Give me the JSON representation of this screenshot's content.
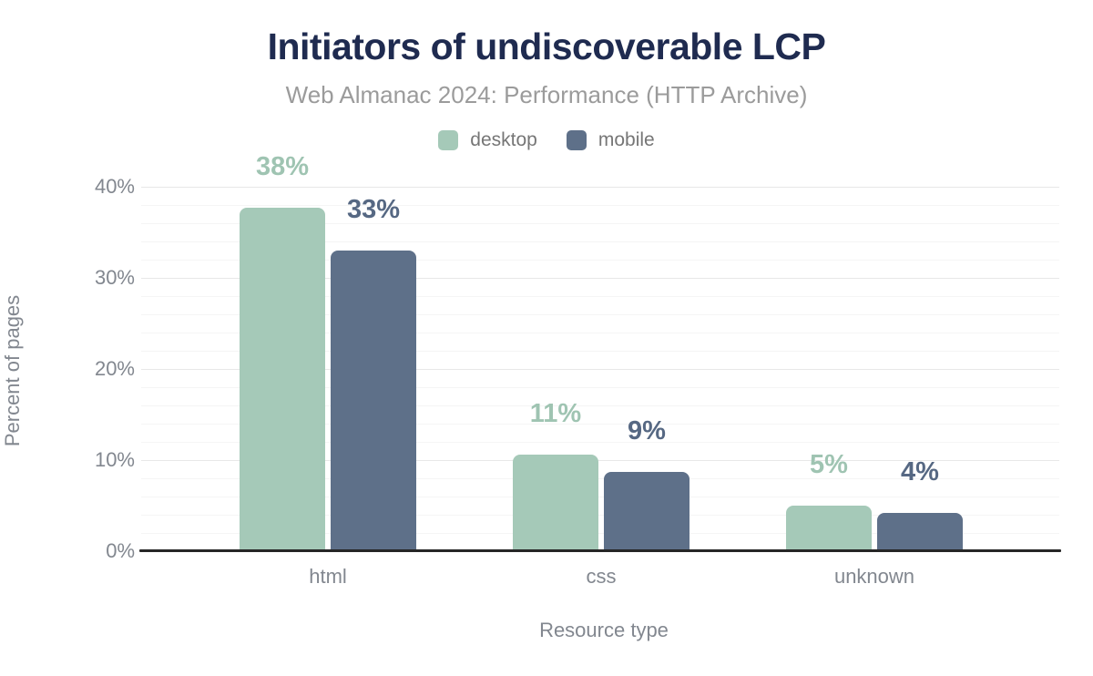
{
  "figure": {
    "title": "Initiators of undiscoverable LCP",
    "subtitle": "Web Almanac 2024: Performance (HTTP Archive)"
  },
  "legend": {
    "items": [
      {
        "label": "desktop",
        "color": "#a5c9b8"
      },
      {
        "label": "mobile",
        "color": "#5e7089"
      }
    ]
  },
  "chart_data": {
    "type": "bar",
    "title": "Initiators of undiscoverable LCP",
    "subtitle": "Web Almanac 2024: Performance (HTTP Archive)",
    "categories": [
      "html",
      "css",
      "unknown"
    ],
    "series": [
      {
        "name": "desktop",
        "color": "#a5c9b8",
        "label_color": "#9fc4b2",
        "values": [
          38,
          11,
          5
        ],
        "labels": [
          "38%",
          "11%",
          "5%"
        ],
        "plotted": [
          37.7,
          10.6,
          5.0
        ]
      },
      {
        "name": "mobile",
        "color": "#5e7089",
        "label_color": "#566883",
        "values": [
          33,
          9,
          4
        ],
        "labels": [
          "33%",
          "9%",
          "4%"
        ],
        "plotted": [
          33.0,
          8.7,
          4.2
        ]
      }
    ],
    "xlabel": "Resource type",
    "ylabel": "Percent of pages",
    "ylim": [
      0,
      40
    ],
    "yticks": [
      0,
      10,
      20,
      30,
      40
    ],
    "ytick_labels": [
      "0%",
      "10%",
      "20%",
      "30%",
      "40%"
    ],
    "grid": {
      "orientation": "horizontal",
      "minor_step": 2,
      "major_step": 10
    },
    "legend_position": "top-center"
  },
  "colors": {
    "title_text": "#1f2b50",
    "subtitle_text": "#9b9b9b",
    "legend_text": "#767676",
    "axis_text": "#82878f",
    "axis_line": "#262626",
    "grid_major": "#e8e8e8",
    "grid_minor": "#f5f5f5",
    "background": "#ffffff"
  }
}
